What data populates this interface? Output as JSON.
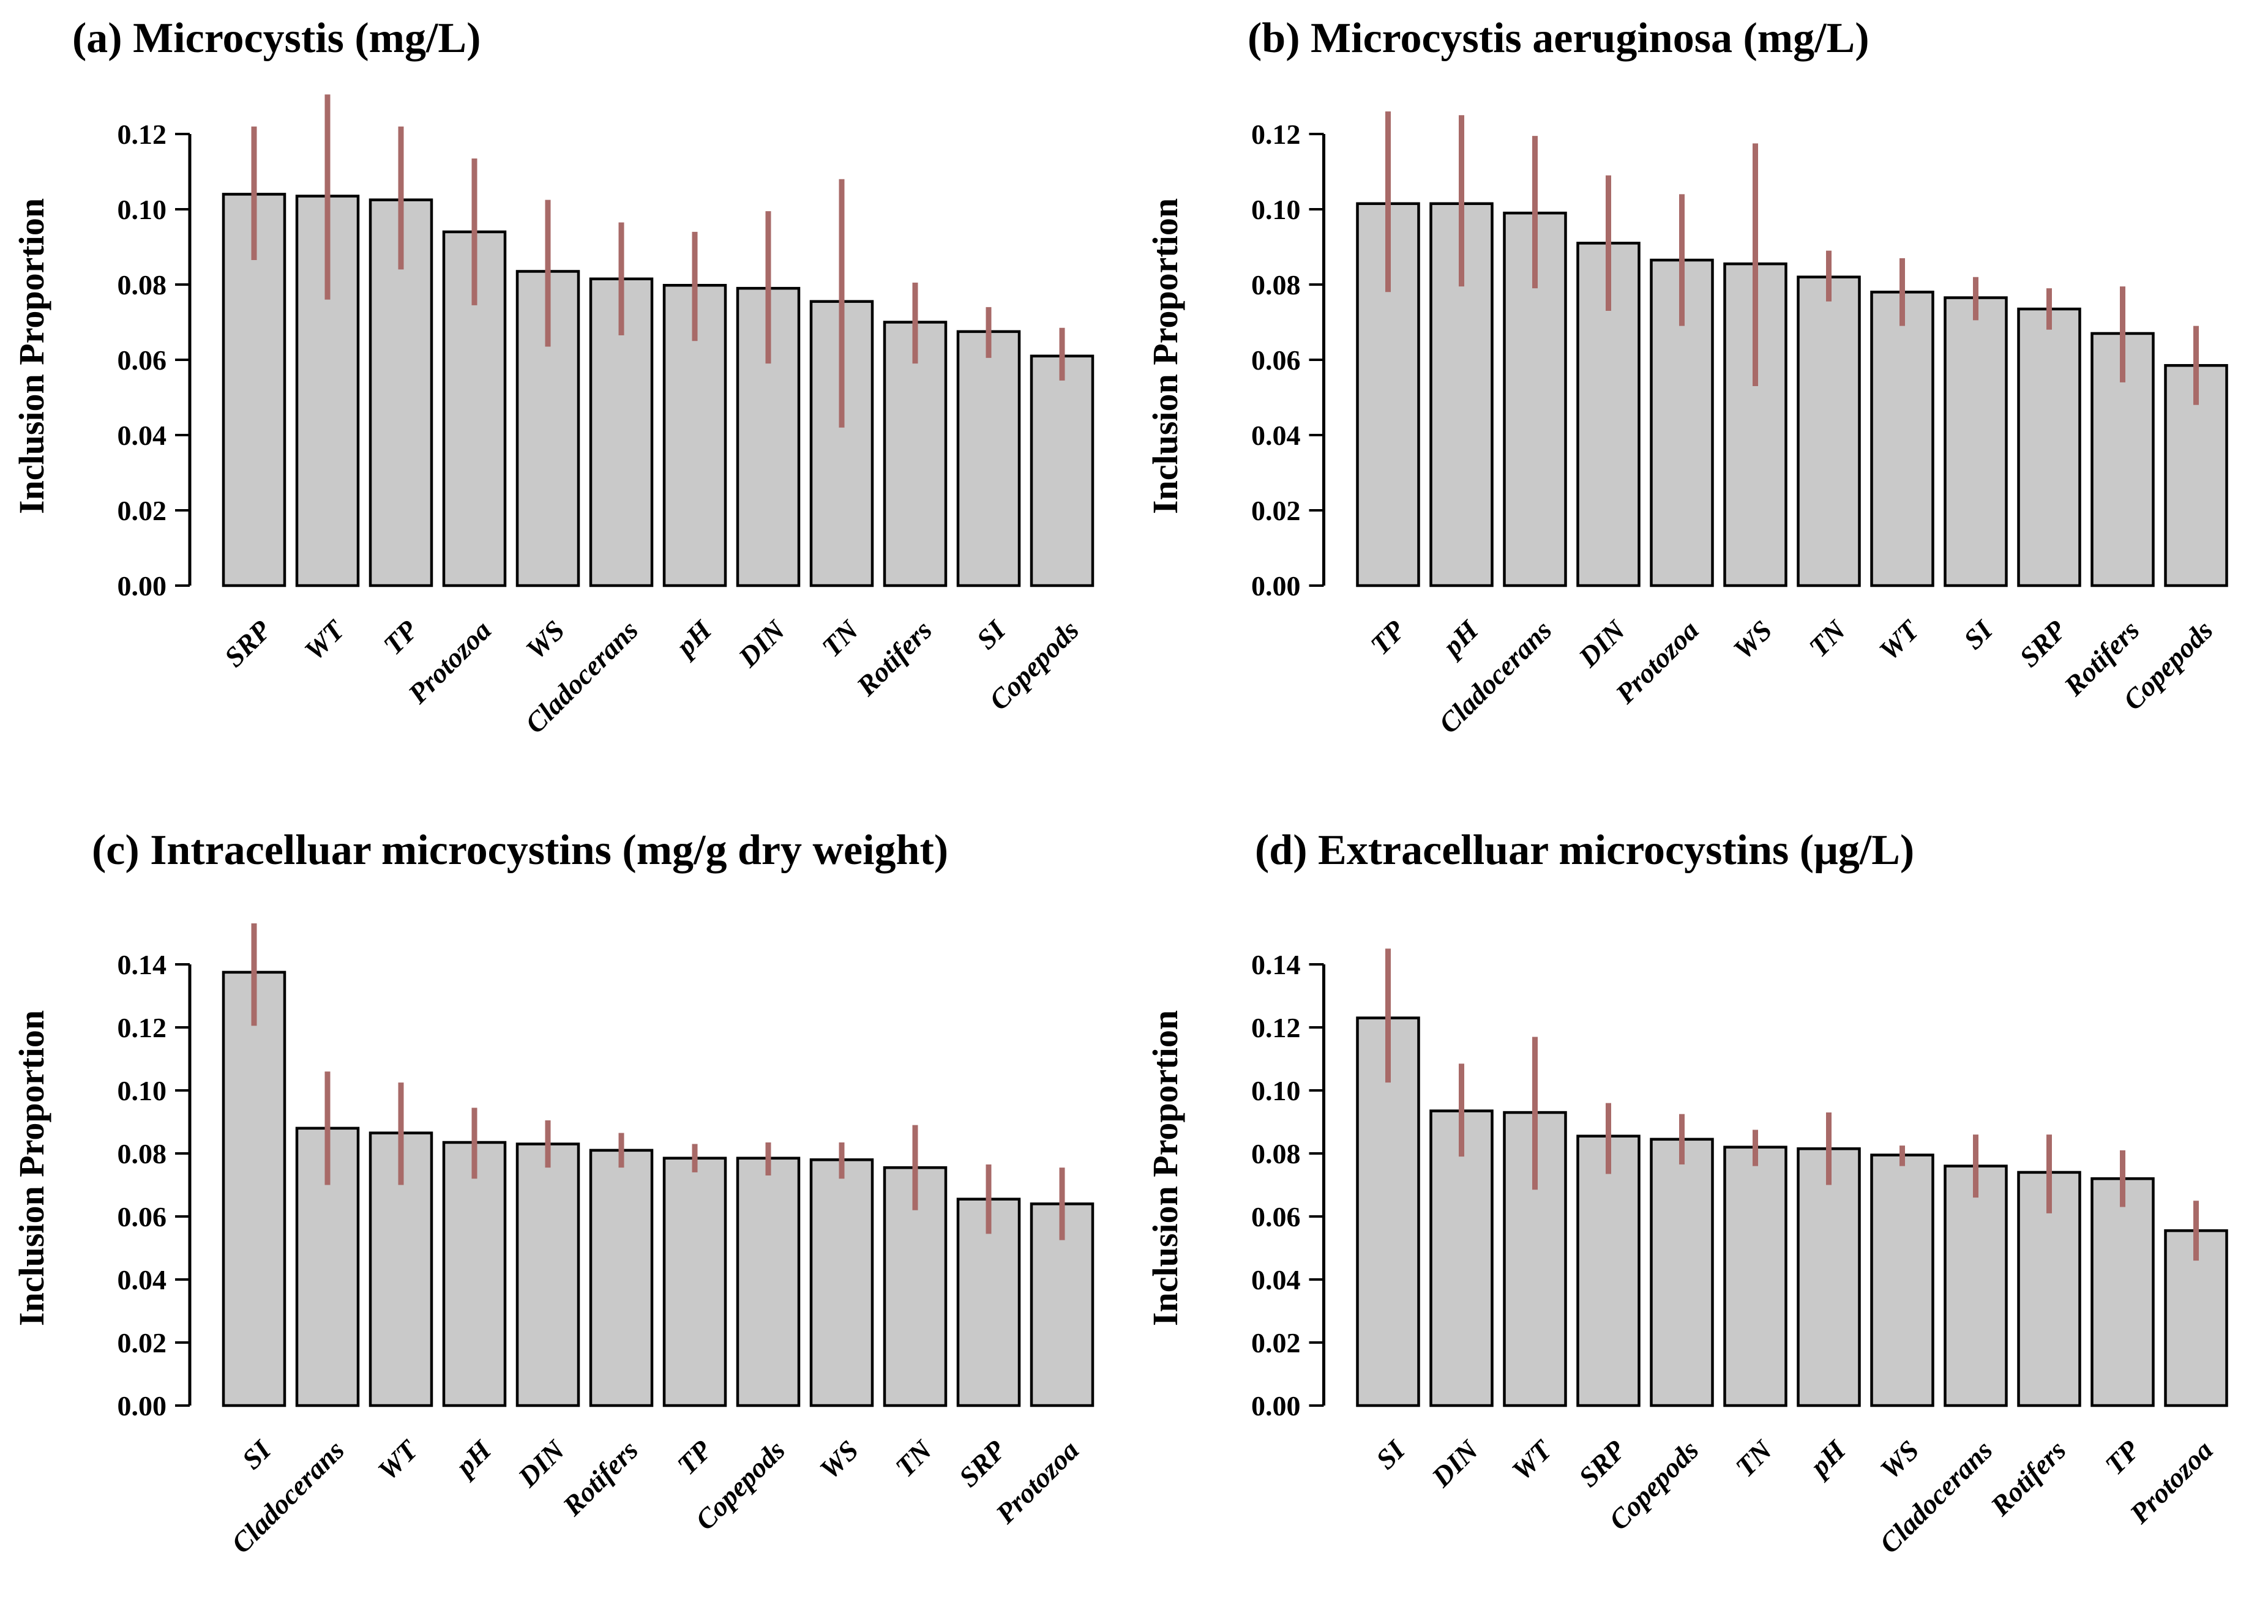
{
  "figure": {
    "background": "#ffffff",
    "colors": {
      "bar_fill": "#c9c9c9",
      "bar_border": "#000000",
      "error_bar": "#a86a68",
      "axis": "#000000"
    }
  },
  "chart_data": [
    {
      "panel": "a",
      "type": "bar",
      "title": "(a) Microcystis (mg/L)",
      "ylabel": "Inclusion Proportion",
      "xlabel": "",
      "legend": "none",
      "grid": false,
      "categories": [
        "SRP",
        "WT",
        "TP",
        "Protozoa",
        "WS",
        "Cladocerans",
        "pH",
        "DIN",
        "TN",
        "Rotifers",
        "SI",
        "Copepods"
      ],
      "values": [
        0.104,
        0.1035,
        0.1025,
        0.094,
        0.0835,
        0.0815,
        0.0798,
        0.079,
        0.0755,
        0.07,
        0.0675,
        0.061
      ],
      "error_low": [
        0.0865,
        0.076,
        0.084,
        0.0745,
        0.0635,
        0.0665,
        0.065,
        0.059,
        0.042,
        0.059,
        0.0605,
        0.0545
      ],
      "error_high": [
        0.122,
        0.1305,
        0.122,
        0.1135,
        0.1025,
        0.0965,
        0.094,
        0.0995,
        0.108,
        0.0805,
        0.074,
        0.0685
      ],
      "yticks": [
        0,
        0.02,
        0.04,
        0.06,
        0.08,
        0.1,
        0.12
      ],
      "ylim": [
        0,
        0.1335
      ]
    },
    {
      "panel": "b",
      "type": "bar",
      "title": "(b) Microcystis aeruginosa (mg/L)",
      "ylabel": "Inclusion Proportion",
      "xlabel": "",
      "legend": "none",
      "grid": false,
      "categories": [
        "TP",
        "pH",
        "Cladocerans",
        "DIN",
        "Protozoa",
        "WS",
        "TN",
        "WT",
        "SI",
        "SRP",
        "Rotifers",
        "Copepods"
      ],
      "values": [
        0.1015,
        0.1015,
        0.099,
        0.091,
        0.0865,
        0.0855,
        0.082,
        0.078,
        0.0765,
        0.0735,
        0.067,
        0.0585
      ],
      "error_low": [
        0.078,
        0.0795,
        0.079,
        0.073,
        0.069,
        0.053,
        0.0755,
        0.069,
        0.0705,
        0.068,
        0.054,
        0.048
      ],
      "error_high": [
        0.126,
        0.125,
        0.1195,
        0.109,
        0.104,
        0.1175,
        0.089,
        0.087,
        0.082,
        0.079,
        0.0795,
        0.069
      ],
      "yticks": [
        0,
        0.02,
        0.04,
        0.06,
        0.08,
        0.1,
        0.12
      ],
      "ylim": [
        0,
        0.1335
      ]
    },
    {
      "panel": "c",
      "type": "bar",
      "title": "(c) Intracelluar microcystins (mg/g dry weight)",
      "ylabel": "Inclusion Proportion",
      "xlabel": "",
      "legend": "none",
      "grid": false,
      "categories": [
        "SI",
        "Cladocerans",
        "WT",
        "pH",
        "DIN",
        "Rotifers",
        "TP",
        "Copepods",
        "WS",
        "TN",
        "SRP",
        "Protozoa"
      ],
      "values": [
        0.1375,
        0.088,
        0.0865,
        0.0835,
        0.083,
        0.081,
        0.0785,
        0.0785,
        0.078,
        0.0755,
        0.0655,
        0.064
      ],
      "error_low": [
        0.1205,
        0.07,
        0.07,
        0.072,
        0.0755,
        0.0755,
        0.074,
        0.073,
        0.072,
        0.062,
        0.0545,
        0.0525
      ],
      "error_high": [
        0.153,
        0.106,
        0.1025,
        0.0945,
        0.0905,
        0.0865,
        0.083,
        0.0835,
        0.0835,
        0.089,
        0.0765,
        0.0755
      ],
      "yticks": [
        0,
        0.02,
        0.04,
        0.06,
        0.08,
        0.1,
        0.12,
        0.14
      ],
      "ylim": [
        0,
        0.156
      ]
    },
    {
      "panel": "d",
      "type": "bar",
      "title": "(d) Extracelluar microcystins (μg/L)",
      "ylabel": "Inclusion Proportion",
      "xlabel": "",
      "legend": "none",
      "grid": false,
      "categories": [
        "SI",
        "DIN",
        "WT",
        "SRP",
        "Copepods",
        "TN",
        "pH",
        "WS",
        "Cladocerans",
        "Rotifers",
        "TP",
        "Protozoa"
      ],
      "values": [
        0.123,
        0.0935,
        0.093,
        0.0855,
        0.0845,
        0.082,
        0.0815,
        0.0795,
        0.076,
        0.074,
        0.072,
        0.0555
      ],
      "error_low": [
        0.1025,
        0.079,
        0.0685,
        0.0735,
        0.0765,
        0.076,
        0.07,
        0.076,
        0.066,
        0.061,
        0.063,
        0.046
      ],
      "error_high": [
        0.145,
        0.1085,
        0.117,
        0.096,
        0.0925,
        0.0875,
        0.093,
        0.0825,
        0.086,
        0.086,
        0.081,
        0.065
      ],
      "yticks": [
        0,
        0.02,
        0.04,
        0.06,
        0.08,
        0.1,
        0.12,
        0.14
      ],
      "ylim": [
        0,
        0.148
      ]
    }
  ]
}
